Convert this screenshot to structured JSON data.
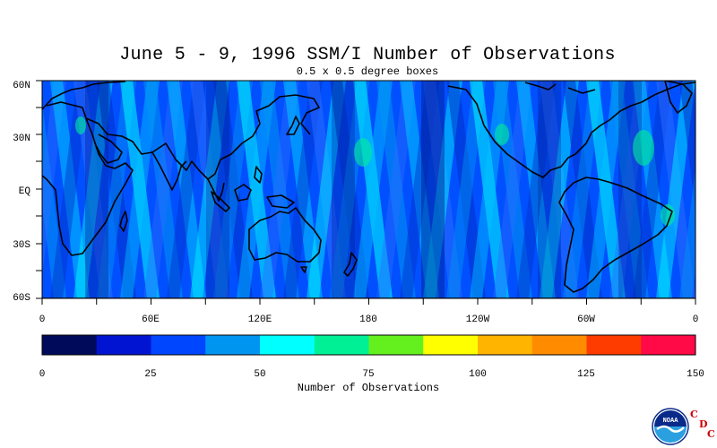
{
  "title": "June 5 - 9, 1996 SSM/I Number of Observations",
  "subtitle": "0.5 x 0.5 degree boxes",
  "lat_labels": [
    "60N",
    "30N",
    "EQ",
    "30S",
    "60S"
  ],
  "lon_labels": [
    "0",
    "60E",
    "120E",
    "180",
    "120W",
    "60W",
    "0"
  ],
  "colorbar": {
    "label": "Number of Observations",
    "ticks": [
      "0",
      "25",
      "50",
      "75",
      "100",
      "125",
      "150"
    ],
    "range": [
      0,
      150
    ],
    "colors": [
      "#000a5a",
      "#0014d2",
      "#0046ff",
      "#0096f0",
      "#00ffff",
      "#00f096",
      "#64f01e",
      "#ffff00",
      "#ffb400",
      "#ff8c00",
      "#ff3c00",
      "#ff0a46"
    ]
  },
  "logo": {
    "icon": "noaa-logo",
    "text": "NOAA"
  },
  "cdc": [
    "C",
    "D",
    "C"
  ],
  "colors": {
    "ocean_base": "#0050ff",
    "land_outline": "#000000",
    "cdc_red": "#cc0000"
  }
}
